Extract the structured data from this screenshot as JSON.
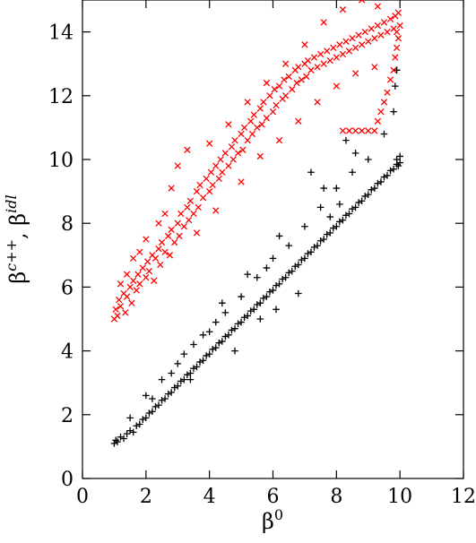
{
  "chart_data": {
    "type": "scatter",
    "title": "",
    "xlabel": "β0",
    "ylabel": "βc++, βidl",
    "xlim": [
      0,
      12
    ],
    "ylim": [
      0,
      15
    ],
    "xticks": [
      "0",
      "2",
      "4",
      "6",
      "8",
      "10",
      "12"
    ],
    "yticks": [
      "0",
      "2",
      "4",
      "6",
      "8",
      "10",
      "12",
      "14"
    ],
    "grid": false,
    "legend": "none",
    "series": [
      {
        "marker": "x",
        "color": "#ff0000",
        "points": [
          [
            1.0,
            5.0
          ],
          [
            1.05,
            5.3
          ],
          [
            1.1,
            5.1
          ],
          [
            1.15,
            5.6
          ],
          [
            1.2,
            5.4
          ],
          [
            1.3,
            5.8
          ],
          [
            1.35,
            5.2
          ],
          [
            1.4,
            5.7
          ],
          [
            1.5,
            6.0
          ],
          [
            1.55,
            5.5
          ],
          [
            1.6,
            6.2
          ],
          [
            1.7,
            5.9
          ],
          [
            1.75,
            6.4
          ],
          [
            1.8,
            6.1
          ],
          [
            1.9,
            6.6
          ],
          [
            2.0,
            6.3
          ],
          [
            2.05,
            6.8
          ],
          [
            2.1,
            6.5
          ],
          [
            2.2,
            7.0
          ],
          [
            2.25,
            6.2
          ],
          [
            2.3,
            6.9
          ],
          [
            2.4,
            7.2
          ],
          [
            2.45,
            6.7
          ],
          [
            2.5,
            7.4
          ],
          [
            2.6,
            7.1
          ],
          [
            2.7,
            7.6
          ],
          [
            2.75,
            7.0
          ],
          [
            2.8,
            7.8
          ],
          [
            2.9,
            7.4
          ],
          [
            3.0,
            8.0
          ],
          [
            3.05,
            7.6
          ],
          [
            3.1,
            8.3
          ],
          [
            3.2,
            7.9
          ],
          [
            3.3,
            8.5
          ],
          [
            3.35,
            8.1
          ],
          [
            3.4,
            8.7
          ],
          [
            3.5,
            8.3
          ],
          [
            3.6,
            9.0
          ],
          [
            3.65,
            8.5
          ],
          [
            3.7,
            9.2
          ],
          [
            3.8,
            8.8
          ],
          [
            3.9,
            9.4
          ],
          [
            4.0,
            9.0
          ],
          [
            4.05,
            9.6
          ],
          [
            4.1,
            9.2
          ],
          [
            4.2,
            9.8
          ],
          [
            4.3,
            9.4
          ],
          [
            4.35,
            10.0
          ],
          [
            4.4,
            9.6
          ],
          [
            4.5,
            10.2
          ],
          [
            4.6,
            9.8
          ],
          [
            4.7,
            10.4
          ],
          [
            4.75,
            10.0
          ],
          [
            4.8,
            10.6
          ],
          [
            4.9,
            10.2
          ],
          [
            5.0,
            10.8
          ],
          [
            5.05,
            10.3
          ],
          [
            5.1,
            11.0
          ],
          [
            5.2,
            10.6
          ],
          [
            5.3,
            11.2
          ],
          [
            5.35,
            10.8
          ],
          [
            5.4,
            11.4
          ],
          [
            5.5,
            11.0
          ],
          [
            5.6,
            11.6
          ],
          [
            5.65,
            11.1
          ],
          [
            5.7,
            11.8
          ],
          [
            5.8,
            11.3
          ],
          [
            5.9,
            12.0
          ],
          [
            6.0,
            11.5
          ],
          [
            6.05,
            12.2
          ],
          [
            6.1,
            11.7
          ],
          [
            6.2,
            12.3
          ],
          [
            6.3,
            11.9
          ],
          [
            6.35,
            12.5
          ],
          [
            6.4,
            12.0
          ],
          [
            6.5,
            12.6
          ],
          [
            6.6,
            12.2
          ],
          [
            6.7,
            12.8
          ],
          [
            6.75,
            12.4
          ],
          [
            6.8,
            12.9
          ],
          [
            6.9,
            12.5
          ],
          [
            7.0,
            13.0
          ],
          [
            7.05,
            12.6
          ],
          [
            7.1,
            13.1
          ],
          [
            7.2,
            12.8
          ],
          [
            7.3,
            13.2
          ],
          [
            7.4,
            12.9
          ],
          [
            7.5,
            13.3
          ],
          [
            7.6,
            13.0
          ],
          [
            7.7,
            13.4
          ],
          [
            7.8,
            13.1
          ],
          [
            7.9,
            13.5
          ],
          [
            8.0,
            13.2
          ],
          [
            8.1,
            13.6
          ],
          [
            8.2,
            13.3
          ],
          [
            8.3,
            13.7
          ],
          [
            8.4,
            13.4
          ],
          [
            8.5,
            13.8
          ],
          [
            8.6,
            13.5
          ],
          [
            8.7,
            13.9
          ],
          [
            8.8,
            13.6
          ],
          [
            8.9,
            14.0
          ],
          [
            9.0,
            13.7
          ],
          [
            9.1,
            14.1
          ],
          [
            9.2,
            13.8
          ],
          [
            9.3,
            14.2
          ],
          [
            9.4,
            13.9
          ],
          [
            9.5,
            14.3
          ],
          [
            9.6,
            14.0
          ],
          [
            9.7,
            14.4
          ],
          [
            9.8,
            14.1
          ],
          [
            9.85,
            14.5
          ],
          [
            9.9,
            14.0
          ],
          [
            9.95,
            14.6
          ],
          [
            10.0,
            14.2
          ],
          [
            9.95,
            13.8
          ],
          [
            9.9,
            13.5
          ],
          [
            9.85,
            13.2
          ],
          [
            9.8,
            12.8
          ],
          [
            9.7,
            12.5
          ],
          [
            9.6,
            12.1
          ],
          [
            9.5,
            11.8
          ],
          [
            9.4,
            11.5
          ],
          [
            9.3,
            11.2
          ],
          [
            9.2,
            10.9
          ],
          [
            9.0,
            10.9
          ],
          [
            8.8,
            10.9
          ],
          [
            8.6,
            10.9
          ],
          [
            8.4,
            10.9
          ],
          [
            8.2,
            10.9
          ],
          [
            3.0,
            9.8
          ],
          [
            3.3,
            10.3
          ],
          [
            2.8,
            9.1
          ],
          [
            4.0,
            10.5
          ],
          [
            4.6,
            11.1
          ],
          [
            5.2,
            11.8
          ],
          [
            5.8,
            12.4
          ],
          [
            6.4,
            13.0
          ],
          [
            7.0,
            13.6
          ],
          [
            7.6,
            14.3
          ],
          [
            8.2,
            14.7
          ],
          [
            8.8,
            15.0
          ],
          [
            9.3,
            14.8
          ],
          [
            2.4,
            8.0
          ],
          [
            2.0,
            7.5
          ],
          [
            1.6,
            6.9
          ],
          [
            3.6,
            7.7
          ],
          [
            4.2,
            8.4
          ],
          [
            5.0,
            9.3
          ],
          [
            5.6,
            10.1
          ],
          [
            6.2,
            10.6
          ],
          [
            6.8,
            11.2
          ],
          [
            7.4,
            11.8
          ],
          [
            8.0,
            12.3
          ],
          [
            8.6,
            12.7
          ],
          [
            9.2,
            12.9
          ],
          [
            1.2,
            6.1
          ],
          [
            1.4,
            6.4
          ],
          [
            1.8,
            7.1
          ],
          [
            2.6,
            8.3
          ]
        ]
      },
      {
        "marker": "+",
        "color": "#000000",
        "points": [
          [
            1.0,
            1.1
          ],
          [
            1.05,
            1.2
          ],
          [
            1.1,
            1.15
          ],
          [
            1.2,
            1.3
          ],
          [
            1.3,
            1.25
          ],
          [
            1.4,
            1.4
          ],
          [
            1.5,
            1.5
          ],
          [
            1.6,
            1.45
          ],
          [
            1.7,
            1.65
          ],
          [
            1.8,
            1.7
          ],
          [
            1.9,
            1.85
          ],
          [
            2.0,
            1.9
          ],
          [
            2.1,
            2.05
          ],
          [
            2.2,
            2.1
          ],
          [
            2.3,
            2.25
          ],
          [
            2.4,
            2.3
          ],
          [
            2.5,
            2.45
          ],
          [
            2.6,
            2.5
          ],
          [
            2.7,
            2.65
          ],
          [
            2.8,
            2.7
          ],
          [
            2.9,
            2.85
          ],
          [
            3.0,
            2.9
          ],
          [
            3.1,
            3.05
          ],
          [
            3.2,
            3.1
          ],
          [
            3.3,
            3.25
          ],
          [
            3.4,
            3.3
          ],
          [
            3.5,
            3.45
          ],
          [
            3.6,
            3.5
          ],
          [
            3.7,
            3.65
          ],
          [
            3.8,
            3.7
          ],
          [
            3.9,
            3.85
          ],
          [
            4.0,
            3.9
          ],
          [
            4.1,
            4.05
          ],
          [
            4.2,
            4.1
          ],
          [
            4.3,
            4.25
          ],
          [
            4.4,
            4.3
          ],
          [
            4.5,
            4.45
          ],
          [
            4.6,
            4.5
          ],
          [
            4.7,
            4.65
          ],
          [
            4.8,
            4.7
          ],
          [
            4.9,
            4.85
          ],
          [
            5.0,
            4.9
          ],
          [
            5.1,
            5.05
          ],
          [
            5.2,
            5.1
          ],
          [
            5.3,
            5.25
          ],
          [
            5.4,
            5.3
          ],
          [
            5.5,
            5.45
          ],
          [
            5.6,
            5.5
          ],
          [
            5.7,
            5.65
          ],
          [
            5.8,
            5.7
          ],
          [
            5.9,
            5.85
          ],
          [
            6.0,
            5.9
          ],
          [
            6.1,
            6.05
          ],
          [
            6.2,
            6.1
          ],
          [
            6.3,
            6.25
          ],
          [
            6.4,
            6.3
          ],
          [
            6.5,
            6.45
          ],
          [
            6.6,
            6.5
          ],
          [
            6.7,
            6.65
          ],
          [
            6.8,
            6.7
          ],
          [
            6.9,
            6.85
          ],
          [
            7.0,
            6.9
          ],
          [
            7.1,
            7.05
          ],
          [
            7.2,
            7.1
          ],
          [
            7.3,
            7.25
          ],
          [
            7.4,
            7.3
          ],
          [
            7.5,
            7.45
          ],
          [
            7.6,
            7.5
          ],
          [
            7.7,
            7.65
          ],
          [
            7.8,
            7.7
          ],
          [
            7.9,
            7.85
          ],
          [
            8.0,
            7.9
          ],
          [
            8.1,
            8.05
          ],
          [
            8.2,
            8.1
          ],
          [
            8.3,
            8.25
          ],
          [
            8.4,
            8.3
          ],
          [
            8.5,
            8.45
          ],
          [
            8.6,
            8.5
          ],
          [
            8.7,
            8.65
          ],
          [
            8.8,
            8.7
          ],
          [
            8.9,
            8.85
          ],
          [
            9.0,
            8.9
          ],
          [
            9.1,
            9.05
          ],
          [
            9.2,
            9.1
          ],
          [
            9.3,
            9.25
          ],
          [
            9.4,
            9.3
          ],
          [
            9.5,
            9.45
          ],
          [
            9.6,
            9.5
          ],
          [
            9.7,
            9.65
          ],
          [
            9.8,
            9.7
          ],
          [
            9.9,
            9.85
          ],
          [
            10.0,
            9.9
          ],
          [
            10.0,
            10.1
          ],
          [
            9.95,
            9.8
          ],
          [
            9.9,
            10.0
          ],
          [
            1.5,
            1.9
          ],
          [
            2.0,
            2.6
          ],
          [
            2.5,
            3.1
          ],
          [
            3.0,
            3.6
          ],
          [
            3.5,
            4.2
          ],
          [
            4.0,
            4.6
          ],
          [
            4.5,
            5.2
          ],
          [
            5.0,
            5.7
          ],
          [
            5.5,
            6.3
          ],
          [
            6.0,
            6.9
          ],
          [
            6.5,
            7.3
          ],
          [
            7.0,
            7.9
          ],
          [
            7.5,
            8.5
          ],
          [
            8.0,
            9.1
          ],
          [
            8.5,
            9.6
          ],
          [
            9.0,
            10.0
          ],
          [
            9.5,
            10.8
          ],
          [
            9.8,
            11.5
          ],
          [
            9.85,
            12.3
          ],
          [
            9.9,
            12.8
          ],
          [
            3.2,
            3.9
          ],
          [
            3.8,
            4.5
          ],
          [
            4.4,
            5.5
          ],
          [
            5.2,
            6.4
          ],
          [
            6.2,
            7.6
          ],
          [
            6.8,
            5.8
          ],
          [
            7.2,
            9.6
          ],
          [
            8.3,
            10.6
          ],
          [
            8.6,
            10.2
          ],
          [
            7.8,
            8.2
          ],
          [
            5.6,
            5.0
          ],
          [
            4.8,
            4.0
          ],
          [
            2.2,
            2.5
          ],
          [
            2.8,
            3.3
          ],
          [
            3.4,
            3.1
          ],
          [
            6.1,
            5.3
          ],
          [
            7.6,
            9.1
          ],
          [
            8.1,
            8.6
          ],
          [
            4.2,
            4.9
          ],
          [
            5.8,
            6.6
          ]
        ]
      }
    ]
  }
}
